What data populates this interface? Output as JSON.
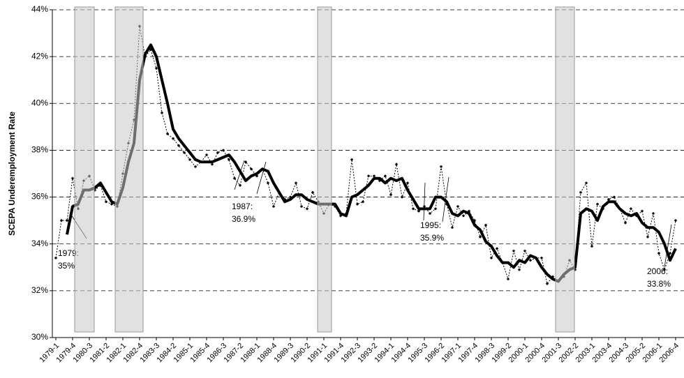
{
  "chart_data": {
    "type": "line",
    "y_label": "SCEPA Underemployment Rate",
    "categories": [
      "1979-1",
      null,
      null,
      "1979-4",
      null,
      null,
      "1980-3",
      null,
      null,
      "1981-2",
      null,
      null,
      "1982-1",
      null,
      null,
      "1982-4",
      null,
      null,
      "1983-3",
      null,
      null,
      "1984-2",
      null,
      null,
      "1985-1",
      null,
      null,
      "1985-4",
      null,
      null,
      "1986-3",
      null,
      null,
      "1987-2",
      null,
      null,
      "1988-1",
      null,
      null,
      "1988-4",
      null,
      null,
      "1989-3",
      null,
      null,
      "1990-2",
      null,
      null,
      "1991-1",
      null,
      null,
      "1991-4",
      null,
      null,
      "1992-3",
      null,
      null,
      "1993-2",
      null,
      null,
      "1994-1",
      null,
      null,
      "1994-4",
      null,
      null,
      "1995-3",
      null,
      null,
      "1996-2",
      null,
      null,
      "1997-1",
      null,
      null,
      "1997-4",
      null,
      null,
      "1998-3",
      null,
      null,
      "1999-2",
      null,
      null,
      "2000-1",
      null,
      null,
      "2000-4",
      null,
      null,
      "2001-3",
      null,
      null,
      "2002-2",
      null,
      null,
      "2003-1",
      null,
      null,
      "2003-4",
      null,
      null,
      "2004-3",
      null,
      null,
      "2005-2",
      null,
      null,
      "2006-1",
      null,
      null,
      "2006-4"
    ],
    "series": [
      {
        "color": "#000000",
        "style": "dotted",
        "values": [
          33.4,
          35.0,
          35.0,
          36.8,
          35.5,
          36.7,
          36.9,
          36.3,
          36.5,
          35.8,
          35.7,
          35.6,
          37.0,
          38.3,
          39.3,
          43.3,
          42.0,
          42.3,
          41.5,
          39.6,
          38.7,
          38.5,
          38.2,
          37.9,
          37.6,
          37.3,
          37.5,
          37.8,
          37.4,
          37.9,
          38.0,
          37.6,
          36.8,
          36.5,
          37.5,
          37.2,
          36.9,
          37.2,
          36.6,
          35.6,
          36.2,
          35.9,
          36.0,
          36.6,
          35.6,
          35.5,
          36.2,
          35.8,
          35.3,
          35.7,
          35.6,
          35.2,
          35.3,
          37.6,
          35.7,
          35.8,
          36.9,
          36.9,
          36.7,
          36.9,
          36.1,
          37.4,
          36.0,
          36.6,
          35.5,
          35.4,
          35.6,
          35.3,
          35.5,
          37.3,
          35.7,
          34.7,
          35.6,
          35.2,
          35.4,
          35.0,
          34.3,
          34.8,
          33.4,
          33.8,
          33.2,
          32.5,
          33.7,
          32.9,
          33.7,
          33.3,
          33.4,
          33.4,
          32.3,
          32.6,
          32.4,
          32.6,
          33.3,
          32.9,
          36.2,
          36.6,
          33.9,
          35.7,
          35.5,
          35.9,
          36.0,
          35.5,
          34.9,
          35.5,
          35.2,
          35.4,
          34.3,
          35.3,
          33.6,
          32.9,
          33.6,
          35.0
        ]
      },
      {
        "color": "#000000",
        "style": "solid",
        "values": [
          null,
          null,
          34.4,
          35.6,
          35.7,
          36.3,
          36.3,
          36.4,
          36.6,
          36.2,
          35.8,
          35.7,
          36.4,
          37.5,
          38.3,
          41.0,
          42.1,
          42.5,
          42.0,
          41.0,
          40.0,
          38.9,
          38.5,
          38.2,
          37.9,
          37.6,
          37.5,
          37.5,
          37.5,
          37.6,
          37.7,
          37.8,
          37.5,
          37.1,
          36.7,
          36.9,
          37.0,
          37.2,
          37.1,
          36.6,
          36.2,
          35.8,
          35.9,
          36.1,
          36.1,
          35.9,
          35.8,
          35.7,
          35.7,
          35.7,
          35.7,
          35.3,
          35.2,
          36.0,
          36.1,
          36.3,
          36.5,
          36.8,
          36.8,
          36.6,
          36.8,
          36.7,
          36.8,
          36.3,
          35.9,
          35.5,
          35.5,
          35.5,
          36.0,
          36.0,
          35.8,
          35.3,
          35.2,
          35.4,
          35.3,
          34.8,
          34.6,
          34.1,
          33.9,
          33.5,
          33.2,
          33.2,
          33.0,
          33.3,
          33.2,
          33.5,
          33.4,
          33.0,
          32.7,
          32.5,
          32.4,
          32.7,
          32.9,
          33.0,
          35.3,
          35.5,
          35.4,
          35.0,
          35.6,
          35.8,
          35.8,
          35.5,
          35.3,
          35.2,
          35.3,
          34.9,
          34.7,
          34.7,
          34.5,
          34.0,
          33.3,
          33.8
        ]
      }
    ],
    "ylim": [
      30,
      44
    ],
    "yticks": [
      {
        "value": 30,
        "label": "30%"
      },
      {
        "value": 32,
        "label": "32%"
      },
      {
        "value": 34,
        "label": "34%"
      },
      {
        "value": 36,
        "label": "36%"
      },
      {
        "value": 38,
        "label": "38%"
      },
      {
        "value": 40,
        "label": "40%"
      },
      {
        "value": 42,
        "label": "42%"
      },
      {
        "value": 44,
        "label": "44%"
      }
    ],
    "grid": true,
    "annotations": [
      [
        "1979:",
        "35%"
      ],
      [
        "1987:",
        "36.9%"
      ],
      [
        "1995:",
        "35.9%"
      ],
      [
        "2006:",
        "33.8%"
      ]
    ]
  }
}
